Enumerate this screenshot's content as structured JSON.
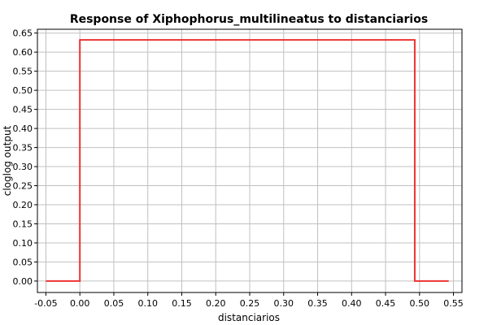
{
  "chart_data": {
    "type": "line",
    "title": "Response of Xiphophorus_multilineatus to distanciarios",
    "xlabel": "distanciarios",
    "ylabel": "cloglog output",
    "xlim": [
      -0.0625,
      0.5625
    ],
    "ylim": [
      -0.03,
      0.66
    ],
    "xticks": [
      -0.05,
      0.0,
      0.05,
      0.1,
      0.15,
      0.2,
      0.25,
      0.3,
      0.35,
      0.4,
      0.45,
      0.5,
      0.55
    ],
    "xtick_labels": [
      "-0.05",
      "0.00",
      "0.05",
      "0.10",
      "0.15",
      "0.20",
      "0.25",
      "0.30",
      "0.35",
      "0.40",
      "0.45",
      "0.50",
      "0.55"
    ],
    "yticks": [
      0.0,
      0.05,
      0.1,
      0.15,
      0.2,
      0.25,
      0.3,
      0.35,
      0.4,
      0.45,
      0.5,
      0.55,
      0.6,
      0.65
    ],
    "ytick_labels": [
      "0.00",
      "0.05",
      "0.10",
      "0.15",
      "0.20",
      "0.25",
      "0.30",
      "0.35",
      "0.40",
      "0.45",
      "0.50",
      "0.55",
      "0.60",
      "0.65"
    ],
    "grid": true,
    "series": [
      {
        "color": "#ee3333",
        "x": [
          -0.05,
          0.0,
          0.0,
          0.493,
          0.493,
          0.543
        ],
        "y": [
          0.0,
          0.0,
          0.632,
          0.632,
          0.0,
          0.0
        ]
      }
    ]
  }
}
